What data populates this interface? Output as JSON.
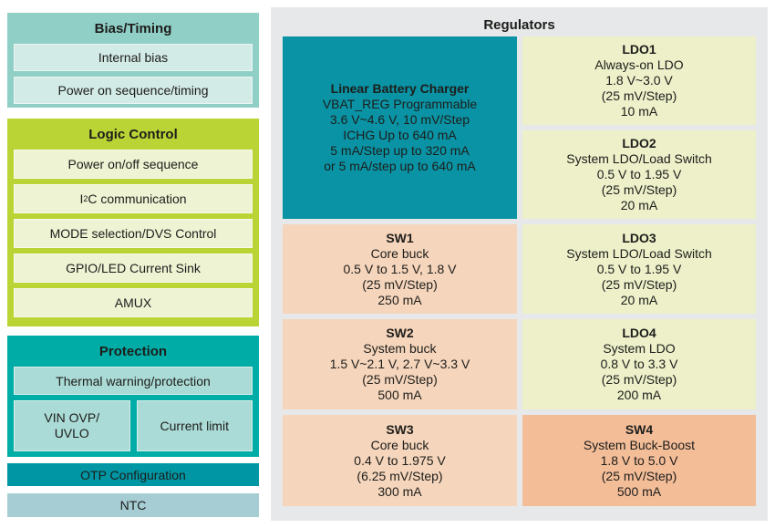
{
  "left": {
    "bias": {
      "title": "Bias/Timing",
      "items": [
        "Internal bias",
        "Power on sequence/timing"
      ]
    },
    "logic": {
      "title": "Logic Control",
      "item_power": "Power on/off sequence",
      "i2c": {
        "pre": "I",
        "sup": "2",
        "post": "C communication"
      },
      "item_mode": "MODE selection/DVS Control",
      "item_gpio": "GPIO/LED Current Sink",
      "item_amux": "AMUX"
    },
    "protection": {
      "title": "Protection",
      "thermal": "Thermal warning/protection",
      "vin_lines": [
        "VIN OVP/",
        "UVLO"
      ],
      "current": "Current limit"
    },
    "otp": "OTP Configuration",
    "ntc": "NTC"
  },
  "regulators": {
    "title": "Regulators",
    "charger": {
      "name": "Linear Battery Charger",
      "lines": [
        "VBAT_REG Programmable",
        "3.6 V~4.6 V, 10 mV/Step",
        "ICHG Up to 640 mA",
        "5 mA/Step up to 320 mA",
        "or 5 mA/step up to 640 mA"
      ]
    },
    "ldo1": {
      "name": "LDO1",
      "lines": [
        "Always-on LDO",
        "1.8 V~3.0 V",
        "(25 mV/Step)",
        "10 mA"
      ]
    },
    "ldo2": {
      "name": "LDO2",
      "lines": [
        "System LDO/Load Switch",
        "0.5 V to 1.95 V",
        "(25 mV/Step)",
        "20 mA"
      ]
    },
    "ldo3": {
      "name": "LDO3",
      "lines": [
        "System LDO/Load Switch",
        "0.5 V to 1.95 V",
        "(25 mV/Step)",
        "20 mA"
      ]
    },
    "ldo4": {
      "name": "LDO4",
      "lines": [
        "System LDO",
        "0.8 V to 3.3 V",
        "(25 mV/Step)",
        "200 mA"
      ]
    },
    "sw1": {
      "name": "SW1",
      "lines": [
        "Core buck",
        "0.5 V to 1.5 V, 1.8 V",
        "(25 mV/Step)",
        "250 mA"
      ]
    },
    "sw2": {
      "name": "SW2",
      "lines": [
        "System buck",
        "1.5 V~2.1 V, 2.7 V~3.3 V",
        "(25 mV/Step)",
        "500 mA"
      ]
    },
    "sw3": {
      "name": "SW3",
      "lines": [
        "Core buck",
        "0.4 V to 1.975 V",
        "(6.25 mV/Step)",
        "300 mA"
      ]
    },
    "sw4": {
      "name": "SW4",
      "lines": [
        "System Buck-Boost",
        "1.8 V to 5.0 V",
        "(25 mV/Step)",
        "500 mA"
      ]
    }
  },
  "colors": {
    "bias_bg": "#8fcfc6",
    "bias_inner": "#d3ebe6",
    "logic_bg": "#b9d434",
    "logic_inner": "#eef3d3",
    "protection_bg": "#00aca6",
    "protection_inner": "#abdbd6",
    "otp_bg": "#0096a4",
    "ntc_bg": "#a6cdd3",
    "panel_bg": "#e7e8e9",
    "charger_bg": "#0a93a4",
    "ldo_bg": "#edf0c9",
    "sw_bg": "#f5d5bb",
    "sw4_bg": "#f3bd98",
    "text": "#1d1d1b"
  }
}
